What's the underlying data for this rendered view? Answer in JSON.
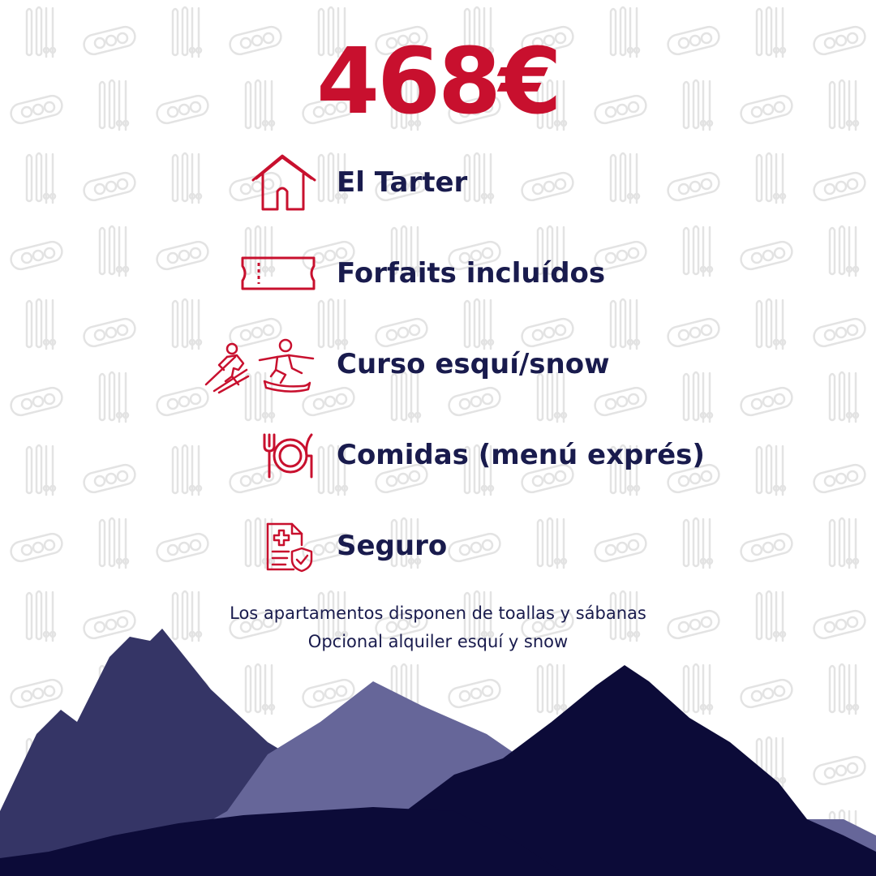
{
  "price": "468€",
  "features": [
    {
      "icon": "house-icon",
      "label": "El Tarter"
    },
    {
      "icon": "ticket-icon",
      "label": "Forfaits incluídos"
    },
    {
      "icon": "skier-snowboarder-icon",
      "label": "Curso esquí/snow"
    },
    {
      "icon": "fork-plate-knife-icon",
      "label": "Comidas (menú exprés)"
    },
    {
      "icon": "insurance-document-icon",
      "label": "Seguro"
    }
  ],
  "notes": [
    "Los apartamentos disponen de toallas y sábanas",
    "Opcional alquiler esquí y snow"
  ],
  "colors": {
    "accent": "#c8102e",
    "text": "#191b4d",
    "mountain_dark": "#0c0b38",
    "mountain_mid": "#353566",
    "mountain_light": "#666699",
    "pattern": "#e3e3e3"
  }
}
